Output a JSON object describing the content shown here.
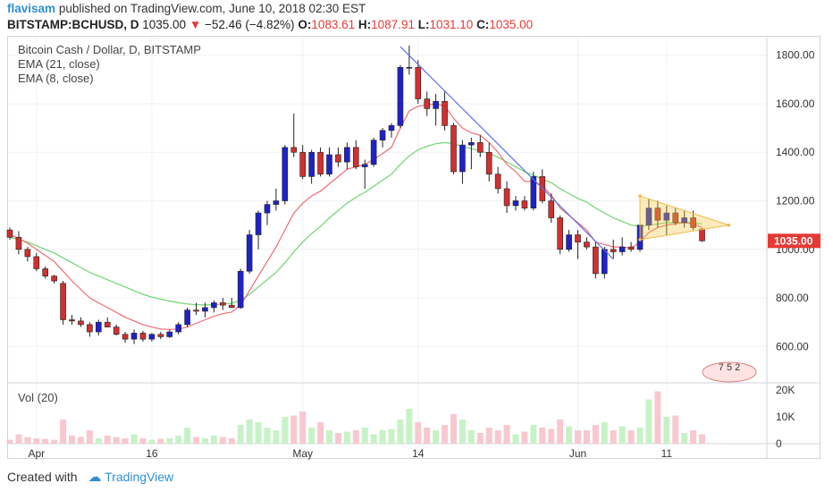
{
  "header": {
    "user": "flavisam",
    "published_text": "published on TradingView.com, June 10, 2018 02:30 EST",
    "symbol": "BITSTAMP:BCHUSD, D",
    "last": "1035.00",
    "change_arrow": "▼",
    "change": "−52.46 (−4.82%)",
    "o_label": "O:",
    "o": "1083.61",
    "h_label": "H:",
    "h": "1087.91",
    "l_label": "L:",
    "l": "1031.10",
    "c_label": "C:",
    "c": "1035.00"
  },
  "legend": {
    "title": "Bitcoin Cash / Dollar, D, BITSTAMP",
    "ema21": "EMA (21, close)",
    "ema8": "EMA (8, close)",
    "vol": "Vol (20)"
  },
  "price_tag": "1035.00",
  "badge": "7 5 2",
  "footer": {
    "created_with": "Created with",
    "brand": "TradingView"
  },
  "colors": {
    "up": "#1f22c8",
    "down": "#d32f2f",
    "ema8": "#f06b74",
    "ema21": "#6fd56f",
    "trend": "#5b6ee8",
    "triangle": "#f5c842",
    "vol_up": "#c7f2c7",
    "vol_down": "#f8c8cf",
    "tag": "#e53935"
  },
  "chart_data": {
    "type": "candlestick",
    "title": "Bitcoin Cash / Dollar, D, BITSTAMP",
    "price_axis": {
      "ticks": [
        600,
        800,
        1000,
        1200,
        1400,
        1600,
        1800
      ],
      "ylim": [
        450,
        1880
      ]
    },
    "volume_axis": {
      "ticks": [
        "0",
        "10K",
        "20K"
      ],
      "ylim": [
        0,
        22000
      ]
    },
    "x_ticks": [
      "Apr",
      "16",
      "May",
      "14",
      "Jun",
      "11"
    ],
    "x_tick_days": [
      3,
      16,
      33,
      46,
      64,
      74
    ],
    "candles": [
      {
        "o": 1080,
        "h": 1090,
        "l": 1040,
        "c": 1050
      },
      {
        "o": 1050,
        "h": 1075,
        "l": 980,
        "c": 1000
      },
      {
        "o": 1000,
        "h": 1010,
        "l": 950,
        "c": 970
      },
      {
        "o": 970,
        "h": 985,
        "l": 910,
        "c": 920
      },
      {
        "o": 920,
        "h": 930,
        "l": 880,
        "c": 890
      },
      {
        "o": 890,
        "h": 895,
        "l": 860,
        "c": 870
      },
      {
        "o": 860,
        "h": 870,
        "l": 690,
        "c": 710
      },
      {
        "o": 710,
        "h": 730,
        "l": 690,
        "c": 705
      },
      {
        "o": 705,
        "h": 720,
        "l": 680,
        "c": 690
      },
      {
        "o": 690,
        "h": 700,
        "l": 640,
        "c": 660
      },
      {
        "o": 660,
        "h": 710,
        "l": 645,
        "c": 700
      },
      {
        "o": 700,
        "h": 720,
        "l": 680,
        "c": 680
      },
      {
        "o": 680,
        "h": 690,
        "l": 645,
        "c": 650
      },
      {
        "o": 650,
        "h": 660,
        "l": 615,
        "c": 630
      },
      {
        "o": 630,
        "h": 670,
        "l": 610,
        "c": 655
      },
      {
        "o": 655,
        "h": 665,
        "l": 620,
        "c": 630
      },
      {
        "o": 630,
        "h": 655,
        "l": 620,
        "c": 650
      },
      {
        "o": 650,
        "h": 660,
        "l": 630,
        "c": 640
      },
      {
        "o": 640,
        "h": 670,
        "l": 635,
        "c": 660
      },
      {
        "o": 660,
        "h": 700,
        "l": 650,
        "c": 690
      },
      {
        "o": 690,
        "h": 760,
        "l": 680,
        "c": 750
      },
      {
        "o": 750,
        "h": 780,
        "l": 730,
        "c": 745
      },
      {
        "o": 745,
        "h": 780,
        "l": 720,
        "c": 760
      },
      {
        "o": 760,
        "h": 790,
        "l": 740,
        "c": 780
      },
      {
        "o": 780,
        "h": 800,
        "l": 750,
        "c": 770
      },
      {
        "o": 770,
        "h": 800,
        "l": 760,
        "c": 760
      },
      {
        "o": 760,
        "h": 920,
        "l": 755,
        "c": 910
      },
      {
        "o": 910,
        "h": 1080,
        "l": 900,
        "c": 1060
      },
      {
        "o": 1060,
        "h": 1160,
        "l": 1000,
        "c": 1150
      },
      {
        "o": 1150,
        "h": 1200,
        "l": 1100,
        "c": 1185
      },
      {
        "o": 1185,
        "h": 1250,
        "l": 1160,
        "c": 1200
      },
      {
        "o": 1200,
        "h": 1430,
        "l": 1185,
        "c": 1420
      },
      {
        "o": 1420,
        "h": 1560,
        "l": 1380,
        "c": 1400
      },
      {
        "o": 1400,
        "h": 1430,
        "l": 1290,
        "c": 1300
      },
      {
        "o": 1300,
        "h": 1410,
        "l": 1270,
        "c": 1400
      },
      {
        "o": 1400,
        "h": 1420,
        "l": 1300,
        "c": 1310
      },
      {
        "o": 1310,
        "h": 1420,
        "l": 1300,
        "c": 1390
      },
      {
        "o": 1390,
        "h": 1420,
        "l": 1340,
        "c": 1360
      },
      {
        "o": 1360,
        "h": 1440,
        "l": 1330,
        "c": 1420
      },
      {
        "o": 1420,
        "h": 1450,
        "l": 1330,
        "c": 1340
      },
      {
        "o": 1340,
        "h": 1370,
        "l": 1250,
        "c": 1350
      },
      {
        "o": 1350,
        "h": 1460,
        "l": 1340,
        "c": 1450
      },
      {
        "o": 1450,
        "h": 1500,
        "l": 1420,
        "c": 1490
      },
      {
        "o": 1490,
        "h": 1520,
        "l": 1460,
        "c": 1510
      },
      {
        "o": 1510,
        "h": 1760,
        "l": 1500,
        "c": 1750
      },
      {
        "o": 1750,
        "h": 1840,
        "l": 1720,
        "c": 1750
      },
      {
        "o": 1750,
        "h": 1780,
        "l": 1600,
        "c": 1620
      },
      {
        "o": 1620,
        "h": 1650,
        "l": 1550,
        "c": 1580
      },
      {
        "o": 1580,
        "h": 1640,
        "l": 1510,
        "c": 1610
      },
      {
        "o": 1610,
        "h": 1650,
        "l": 1490,
        "c": 1510
      },
      {
        "o": 1510,
        "h": 1520,
        "l": 1310,
        "c": 1320
      },
      {
        "o": 1320,
        "h": 1450,
        "l": 1270,
        "c": 1430
      },
      {
        "o": 1430,
        "h": 1460,
        "l": 1330,
        "c": 1440
      },
      {
        "o": 1440,
        "h": 1470,
        "l": 1380,
        "c": 1400
      },
      {
        "o": 1400,
        "h": 1440,
        "l": 1280,
        "c": 1310
      },
      {
        "o": 1310,
        "h": 1340,
        "l": 1230,
        "c": 1250
      },
      {
        "o": 1250,
        "h": 1280,
        "l": 1150,
        "c": 1180
      },
      {
        "o": 1180,
        "h": 1220,
        "l": 1160,
        "c": 1200
      },
      {
        "o": 1200,
        "h": 1220,
        "l": 1160,
        "c": 1170
      },
      {
        "o": 1170,
        "h": 1320,
        "l": 1160,
        "c": 1300
      },
      {
        "o": 1300,
        "h": 1330,
        "l": 1190,
        "c": 1200
      },
      {
        "o": 1200,
        "h": 1230,
        "l": 1110,
        "c": 1130
      },
      {
        "o": 1130,
        "h": 1140,
        "l": 980,
        "c": 1000
      },
      {
        "o": 1000,
        "h": 1080,
        "l": 990,
        "c": 1060
      },
      {
        "o": 1060,
        "h": 1080,
        "l": 960,
        "c": 1030
      },
      {
        "o": 1030,
        "h": 1050,
        "l": 1000,
        "c": 1010
      },
      {
        "o": 1010,
        "h": 1030,
        "l": 880,
        "c": 900
      },
      {
        "o": 900,
        "h": 1010,
        "l": 880,
        "c": 1000
      },
      {
        "o": 1000,
        "h": 1040,
        "l": 960,
        "c": 990
      },
      {
        "o": 990,
        "h": 1050,
        "l": 975,
        "c": 1010
      },
      {
        "o": 1010,
        "h": 1030,
        "l": 990,
        "c": 1000
      },
      {
        "o": 1000,
        "h": 1120,
        "l": 990,
        "c": 1100
      },
      {
        "o": 1100,
        "h": 1210,
        "l": 1080,
        "c": 1170
      },
      {
        "o": 1170,
        "h": 1200,
        "l": 1090,
        "c": 1120
      },
      {
        "o": 1120,
        "h": 1180,
        "l": 1060,
        "c": 1150
      },
      {
        "o": 1150,
        "h": 1170,
        "l": 1100,
        "c": 1110
      },
      {
        "o": 1110,
        "h": 1160,
        "l": 1090,
        "c": 1130
      },
      {
        "o": 1130,
        "h": 1160,
        "l": 1080,
        "c": 1090
      },
      {
        "o": 1083.61,
        "h": 1087.91,
        "l": 1031.1,
        "c": 1035.0
      }
    ],
    "volume": [
      1500,
      3500,
      2500,
      2000,
      1800,
      1500,
      9000,
      3000,
      2500,
      5000,
      2000,
      3000,
      2500,
      2000,
      3500,
      2000,
      1500,
      1800,
      2000,
      3000,
      6000,
      2500,
      2000,
      3000,
      2500,
      2000,
      7000,
      9000,
      8000,
      6000,
      5000,
      10000,
      10500,
      12000,
      6000,
      8000,
      5000,
      4000,
      4500,
      5000,
      6000,
      3500,
      5000,
      5500,
      9000,
      13000,
      8000,
      6000,
      5000,
      7000,
      11000,
      9000,
      5000,
      4000,
      6000,
      5000,
      7000,
      3500,
      4500,
      7000,
      6000,
      5500,
      9000,
      6500,
      5000,
      5000,
      7000,
      8000,
      5000,
      6500,
      5000,
      6000,
      16500,
      19500,
      10000,
      10500,
      4000,
      5000,
      3500
    ],
    "ema8": [
      1060,
      1045,
      1025,
      1000,
      975,
      950,
      910,
      870,
      835,
      800,
      780,
      760,
      740,
      720,
      705,
      690,
      680,
      672,
      670,
      672,
      680,
      695,
      710,
      725,
      735,
      742,
      770,
      830,
      890,
      950,
      1010,
      1080,
      1150,
      1190,
      1220,
      1240,
      1270,
      1300,
      1330,
      1340,
      1350,
      1370,
      1395,
      1420,
      1500,
      1570,
      1590,
      1595,
      1600,
      1590,
      1540,
      1500,
      1480,
      1470,
      1440,
      1400,
      1350,
      1320,
      1280,
      1280,
      1260,
      1225,
      1170,
      1140,
      1110,
      1080,
      1030,
      1020,
      1010,
      1010,
      1005,
      1030,
      1070,
      1090,
      1100,
      1105,
      1110,
      1105,
      1090
    ],
    "ema21": [
      1050,
      1040,
      1030,
      1015,
      1000,
      985,
      965,
      945,
      925,
      905,
      890,
      875,
      860,
      845,
      830,
      815,
      803,
      795,
      787,
      780,
      775,
      772,
      771,
      772,
      775,
      778,
      790,
      815,
      845,
      875,
      905,
      945,
      990,
      1030,
      1065,
      1095,
      1130,
      1160,
      1190,
      1215,
      1235,
      1260,
      1285,
      1310,
      1350,
      1385,
      1410,
      1425,
      1435,
      1440,
      1435,
      1425,
      1415,
      1405,
      1395,
      1380,
      1360,
      1340,
      1320,
      1305,
      1290,
      1275,
      1250,
      1230,
      1210,
      1195,
      1170,
      1150,
      1130,
      1115,
      1100,
      1095,
      1100,
      1105,
      1110,
      1110,
      1112,
      1110,
      1105
    ]
  }
}
